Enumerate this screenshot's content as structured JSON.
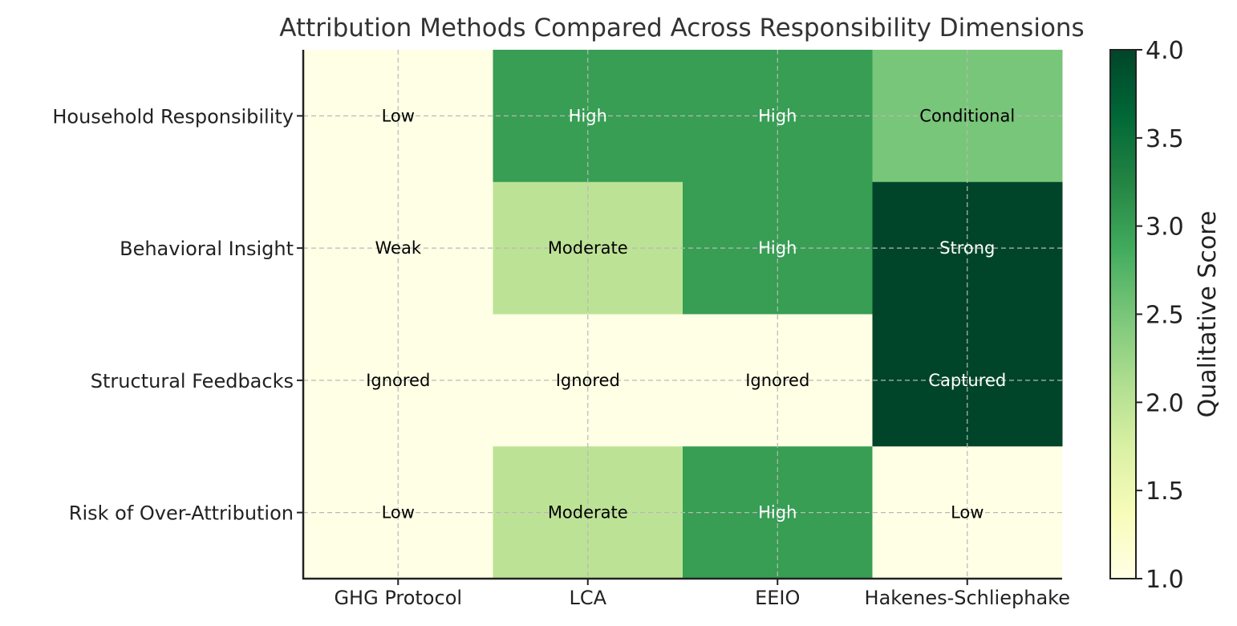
{
  "chart_data": {
    "type": "heatmap",
    "title": "Attribution Methods Compared Across Responsibility Dimensions",
    "columns": [
      "GHG Protocol",
      "LCA",
      "EEIO",
      "Hakenes-Schliephake"
    ],
    "rows": [
      "Household Responsibility",
      "Behavioral Insight",
      "Structural Feedbacks",
      "Risk of Over-Attribution"
    ],
    "values": [
      [
        1,
        3,
        3,
        2.5
      ],
      [
        1,
        2,
        3,
        4
      ],
      [
        1,
        1,
        1,
        4
      ],
      [
        1,
        2,
        3,
        1
      ]
    ],
    "labels": [
      [
        "Low",
        "High",
        "High",
        "Conditional"
      ],
      [
        "Weak",
        "Moderate",
        "High",
        "Strong"
      ],
      [
        "Ignored",
        "Ignored",
        "Ignored",
        "Captured"
      ],
      [
        "Low",
        "Moderate",
        "High",
        "Low"
      ]
    ],
    "colorbar": {
      "label": "Qualitative Score",
      "min": 1.0,
      "max": 4.0,
      "ticks": [
        "1.0",
        "1.5",
        "2.0",
        "2.5",
        "3.0",
        "3.5",
        "4.0"
      ],
      "colormap": "YlGn"
    },
    "grid": true
  }
}
